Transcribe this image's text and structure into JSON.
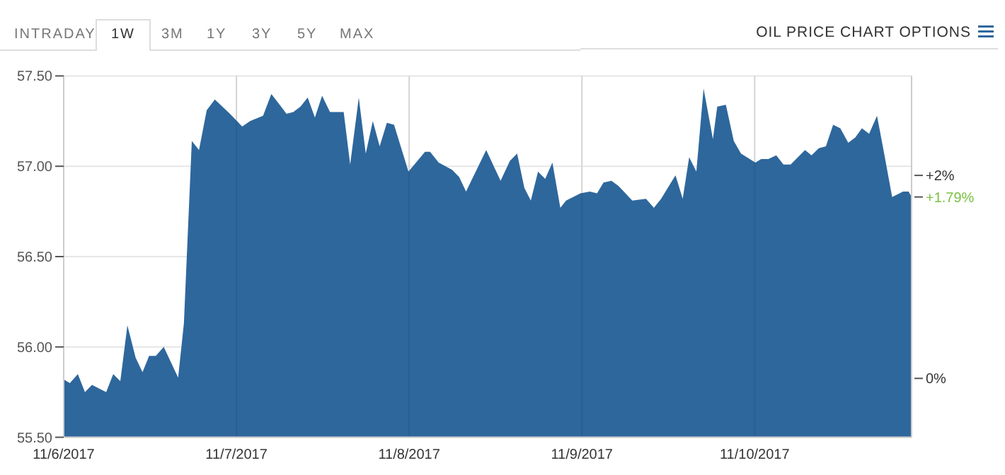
{
  "chart_data": {
    "type": "area",
    "color": "#2e679c",
    "annotations": [
      "INTRADAY",
      "1W",
      "3M",
      "1Y",
      "3Y",
      "5Y",
      "MAX",
      "OIL PRICE CHART OPTIONS",
      {
        "text": "+1.79%",
        "x": "2017-11-10T21:48",
        "y": 56.83
      }
    ],
    "x": [
      "2017-11-06T00:00",
      "2017-11-06T00:51",
      "2017-11-06T01:58",
      "2017-11-06T02:57",
      "2017-11-06T03:56",
      "2017-11-06T05:54",
      "2017-11-06T06:53",
      "2017-11-06T07:52",
      "2017-11-06T08:51",
      "2017-11-06T10:00",
      "2017-11-06T10:57",
      "2017-11-06T11:52",
      "2017-11-06T12:48",
      "2017-11-06T13:54",
      "2017-11-06T15:54",
      "2017-11-06T16:42",
      "2017-11-06T17:48",
      "2017-11-06T18:48",
      "2017-11-06T19:52",
      "2017-11-06T21:00",
      "2017-11-06T23:06",
      "2017-11-07T00:48",
      "2017-11-07T01:54",
      "2017-11-07T03:42",
      "2017-11-07T04:51",
      "2017-11-07T06:12",
      "2017-11-07T06:57",
      "2017-11-07T07:54",
      "2017-11-07T08:54",
      "2017-11-07T09:54",
      "2017-11-07T10:54",
      "2017-11-07T11:54",
      "2017-11-07T13:00",
      "2017-11-07T14:54",
      "2017-11-07T15:48",
      "2017-11-07T17:00",
      "2017-11-07T17:58",
      "2017-11-07T18:57",
      "2017-11-07T19:54",
      "2017-11-07T20:54",
      "2017-11-07T21:54",
      "2017-11-07T23:54",
      "2017-11-08T02:12",
      "2017-11-08T02:54",
      "2017-11-08T04:06",
      "2017-11-08T05:58",
      "2017-11-08T06:57",
      "2017-11-08T07:54",
      "2017-11-08T10:42",
      "2017-11-08T12:42",
      "2017-11-08T14:00",
      "2017-11-08T15:00",
      "2017-11-08T16:00",
      "2017-11-08T16:54",
      "2017-11-08T17:54",
      "2017-11-08T18:54",
      "2017-11-08T19:54",
      "2017-11-08T21:00",
      "2017-11-08T21:48",
      "2017-11-08T23:48",
      "2017-11-09T01:06",
      "2017-11-09T02:06",
      "2017-11-09T03:00",
      "2017-11-09T04:06",
      "2017-11-09T05:06",
      "2017-11-09T07:00",
      "2017-11-09T08:54",
      "2017-11-09T10:00",
      "2017-11-09T11:00",
      "2017-11-09T13:00",
      "2017-11-09T14:00",
      "2017-11-09T14:54",
      "2017-11-09T15:54",
      "2017-11-09T16:54",
      "2017-11-09T18:12",
      "2017-11-09T18:48",
      "2017-11-09T20:00",
      "2017-11-09T21:06",
      "2017-11-09T22:06",
      "2017-11-10T00:06",
      "2017-11-10T00:54",
      "2017-11-10T01:54",
      "2017-11-10T03:00",
      "2017-11-10T04:00",
      "2017-11-10T05:00",
      "2017-11-10T07:00",
      "2017-11-10T07:54",
      "2017-11-10T08:54",
      "2017-11-10T09:54",
      "2017-11-10T10:54",
      "2017-11-10T11:54",
      "2017-11-10T13:00",
      "2017-11-10T14:00",
      "2017-11-10T14:54",
      "2017-11-10T15:54",
      "2017-11-10T17:00",
      "2017-11-10T17:54",
      "2017-11-10T19:06",
      "2017-11-10T20:36",
      "2017-11-10T21:24",
      "2017-11-10T21:48"
    ],
    "values": [
      55.82,
      55.8,
      55.85,
      55.75,
      55.79,
      55.75,
      55.85,
      55.81,
      56.12,
      55.94,
      55.86,
      55.95,
      55.95,
      56.0,
      55.83,
      56.13,
      57.14,
      57.09,
      57.31,
      57.37,
      57.29,
      57.22,
      57.25,
      57.28,
      57.4,
      57.33,
      57.29,
      57.3,
      57.33,
      57.38,
      57.27,
      57.39,
      57.3,
      57.3,
      57.01,
      57.38,
      57.07,
      57.25,
      57.11,
      57.24,
      57.23,
      56.97,
      57.08,
      57.08,
      57.02,
      56.98,
      56.94,
      56.86,
      57.09,
      56.92,
      57.03,
      57.07,
      56.88,
      56.81,
      56.97,
      56.93,
      57.02,
      56.77,
      56.81,
      56.85,
      56.86,
      56.85,
      56.91,
      56.92,
      56.89,
      56.81,
      56.82,
      56.77,
      56.82,
      56.95,
      56.82,
      57.05,
      56.97,
      57.43,
      57.15,
      57.33,
      57.34,
      57.14,
      57.07,
      57.02,
      57.04,
      57.04,
      57.06,
      57.01,
      57.01,
      57.09,
      57.06,
      57.1,
      57.11,
      57.23,
      57.21,
      57.13,
      57.16,
      57.21,
      57.18,
      57.28,
      57.09,
      56.83,
      56.86,
      56.86,
      56.83
    ],
    "xlim": [
      "2017-11-06T00:00",
      "2017-11-10T21:48"
    ],
    "xticks": [
      {
        "value": "2017-11-06",
        "label": "11/6/2017"
      },
      {
        "value": "2017-11-07",
        "label": "11/7/2017"
      },
      {
        "value": "2017-11-08",
        "label": "11/8/2017"
      },
      {
        "value": "2017-11-09",
        "label": "11/9/2017"
      },
      {
        "value": "2017-11-10",
        "label": "11/10/2017"
      }
    ],
    "ylim": [
      55.5,
      57.5
    ],
    "yticks": [
      {
        "value": 55.5,
        "label": "55.50"
      },
      {
        "value": 56,
        "label": "56.00"
      },
      {
        "value": 56.5,
        "label": "56.50"
      },
      {
        "value": 57,
        "label": "57.00"
      },
      {
        "value": 57.5,
        "label": "57.50"
      }
    ],
    "y2lim": [
      -0.58,
      2.98
    ],
    "y2ticks": [
      {
        "value": 0,
        "label": "0%"
      },
      {
        "value": 2,
        "label": "+2%"
      }
    ],
    "grid": true
  }
}
